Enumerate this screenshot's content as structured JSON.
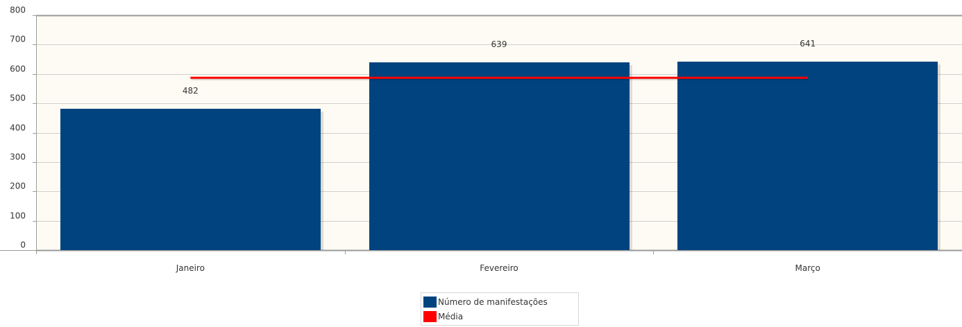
{
  "chart_data": {
    "type": "bar",
    "categories": [
      "Janeiro",
      "Fevereiro",
      "Março"
    ],
    "series": [
      {
        "name": "Número de manifestações",
        "type": "bar",
        "color": "#00437f",
        "values": [
          482,
          639,
          641
        ],
        "data_labels": [
          "482",
          "639",
          "641"
        ]
      },
      {
        "name": "Média",
        "type": "line",
        "color": "#ff0000",
        "values": [
          587,
          587,
          587
        ]
      }
    ],
    "ylim": [
      0,
      800
    ],
    "yticks": [
      "0",
      "100",
      "200",
      "300",
      "400",
      "500",
      "600",
      "700",
      "800"
    ],
    "grid": true,
    "plot_background": "#fdfbf3",
    "legend_position": "bottom-center"
  }
}
